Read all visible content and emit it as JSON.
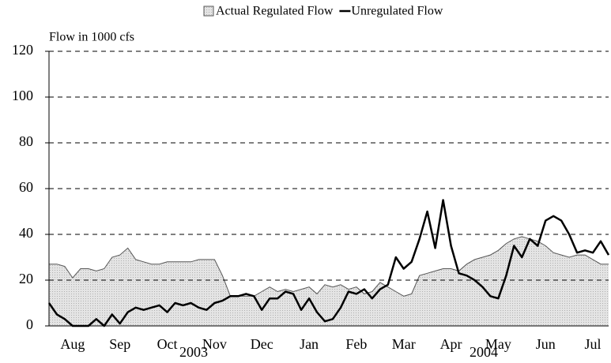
{
  "chart_data": {
    "type": "area_line",
    "y_label": "Flow in 1000 cfs",
    "categories": [
      null,
      null,
      null,
      "Aug",
      null,
      null,
      null,
      null,
      null,
      "Sep",
      null,
      null,
      null,
      null,
      null,
      "Oct",
      null,
      null,
      null,
      null,
      null,
      "Nov",
      null,
      null,
      null,
      null,
      null,
      "Dec",
      null,
      null,
      null,
      null,
      null,
      "Jan",
      null,
      null,
      null,
      null,
      null,
      "Feb",
      null,
      null,
      null,
      null,
      null,
      "Mar",
      null,
      null,
      null,
      null,
      null,
      "Apr",
      null,
      null,
      null,
      null,
      null,
      "May",
      null,
      null,
      null,
      null,
      null,
      "Jun",
      null,
      null,
      null,
      null,
      null,
      "Jul",
      null,
      null
    ],
    "year_labels": [
      "2003",
      "2004"
    ],
    "series": [
      {
        "name": "Actual Regulated Flow",
        "kind": "area",
        "color": "#dcdcdc",
        "stroke": "#555555",
        "values": [
          27,
          27,
          26,
          21,
          25,
          25,
          24,
          25,
          30,
          31,
          34,
          29,
          28,
          27,
          27,
          28,
          28,
          28,
          28,
          29,
          29,
          29,
          22,
          13,
          13,
          13,
          13,
          15,
          17,
          15,
          16,
          15,
          16,
          17,
          14,
          18,
          17,
          18,
          16,
          17,
          14,
          15,
          19,
          17,
          15,
          13,
          14,
          22,
          23,
          24,
          25,
          25,
          24,
          27,
          29,
          30,
          31,
          33,
          36,
          38,
          39,
          38,
          37,
          35,
          32,
          31,
          30,
          31,
          31,
          29,
          27,
          27
        ]
      },
      {
        "name": "Unregulated Flow",
        "kind": "line",
        "color": "#000000",
        "values": [
          10,
          5,
          3,
          0,
          0,
          0,
          3,
          0,
          5,
          1,
          6,
          8,
          7,
          8,
          9,
          6,
          10,
          9,
          10,
          8,
          7,
          10,
          11,
          13,
          13,
          14,
          13,
          7,
          12,
          12,
          15,
          14,
          7,
          12,
          6,
          2,
          3,
          8,
          15,
          14,
          16,
          12,
          16,
          18,
          30,
          25,
          28,
          38,
          50,
          34,
          55,
          35,
          23,
          22,
          20,
          17,
          13,
          12,
          22,
          35,
          30,
          38,
          35,
          46,
          48,
          46,
          40,
          32,
          33,
          32,
          37,
          31
        ]
      }
    ],
    "ylim": [
      0,
      120
    ],
    "yticks": [
      0,
      20,
      40,
      60,
      80,
      100,
      120
    ],
    "grid": true
  }
}
